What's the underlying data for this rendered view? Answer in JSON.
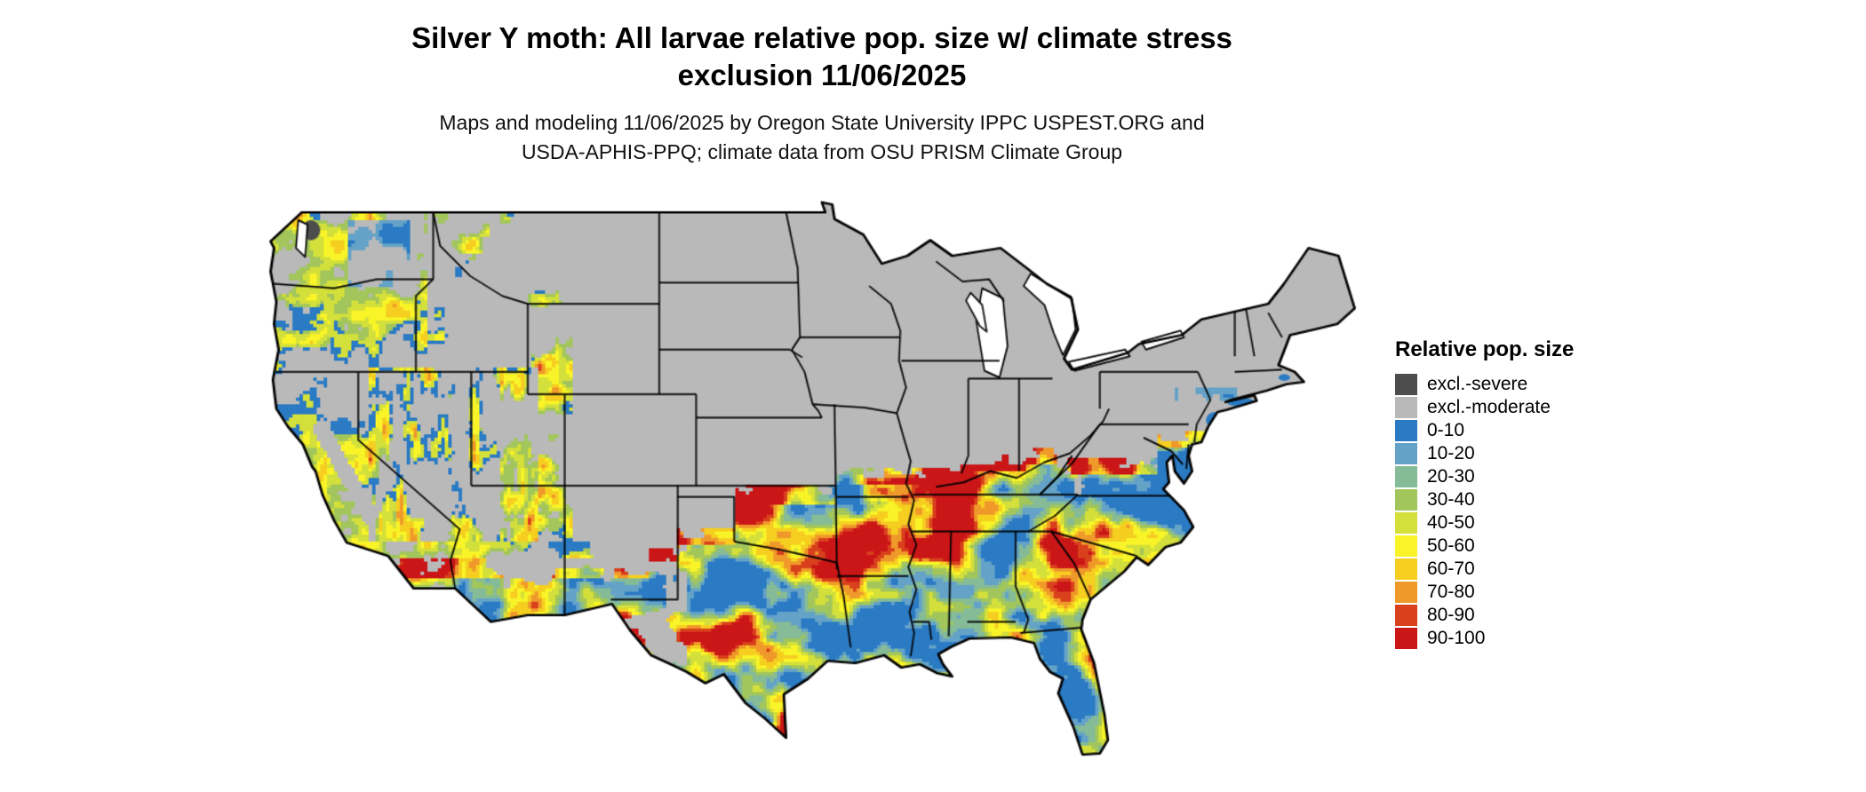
{
  "header": {
    "title_line1": "Silver Y moth: All larvae relative pop. size w/ climate stress",
    "title_line2": "exclusion 11/06/2025",
    "subtitle_line1": "Maps and modeling 11/06/2025 by Oregon State University IPPC USPEST.ORG and",
    "subtitle_line2": "USDA-APHIS-PPQ; climate data from OSU PRISM Climate Group"
  },
  "legend": {
    "title": "Relative pop. size",
    "items": [
      {
        "label": "excl.-severe",
        "color": "#4d4d4d"
      },
      {
        "label": "excl.-moderate",
        "color": "#b9b9b9"
      },
      {
        "label": "0-10",
        "color": "#2b7bc4"
      },
      {
        "label": "10-20",
        "color": "#64a2c8"
      },
      {
        "label": "20-30",
        "color": "#85bb96"
      },
      {
        "label": "30-40",
        "color": "#a2c65b"
      },
      {
        "label": "40-50",
        "color": "#d3df3a"
      },
      {
        "label": "50-60",
        "color": "#f8f428"
      },
      {
        "label": "60-70",
        "color": "#f6ce20"
      },
      {
        "label": "70-80",
        "color": "#f0992b"
      },
      {
        "label": "80-90",
        "color": "#d8411c"
      },
      {
        "label": "90-100",
        "color": "#cb1618"
      }
    ]
  },
  "map": {
    "region": "Continental United States",
    "base_color": "#b9b9b9",
    "border_color": "#000000",
    "water_color": "#ffffff"
  },
  "chart_data": {
    "type": "choropleth_map",
    "region": "Continental United States",
    "title": "Silver Y moth: All larvae relative pop. size w/ climate stress exclusion 11/06/2025",
    "scale_title": "Relative pop. size",
    "classes": [
      "excl.-severe",
      "excl.-moderate",
      "0-10",
      "10-20",
      "20-30",
      "30-40",
      "40-50",
      "50-60",
      "60-70",
      "70-80",
      "80-90",
      "90-100"
    ]
  }
}
